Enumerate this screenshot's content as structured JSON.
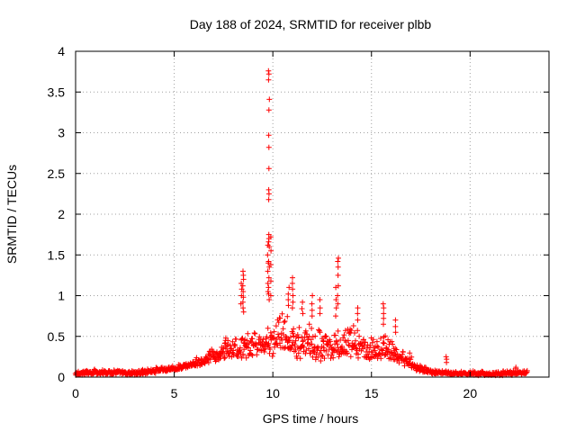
{
  "chart_data": {
    "type": "scatter",
    "title": "Day 188 of 2024, SRMTID for receiver plbb",
    "xlabel": "GPS time / hours",
    "ylabel": "SRMTID / TECUs",
    "xlim": [
      0,
      24
    ],
    "ylim": [
      0,
      4
    ],
    "xticks": [
      0,
      5,
      10,
      15,
      20
    ],
    "xtick_labels": [
      "0",
      "5",
      "10",
      "15",
      "20"
    ],
    "yticks": [
      0,
      0.5,
      1,
      1.5,
      2,
      2.5,
      3,
      3.5,
      4
    ],
    "ytick_labels": [
      "0",
      "0.5",
      "1",
      "1.5",
      "2",
      "2.5",
      "3",
      "3.5",
      "4"
    ],
    "grid": true,
    "marker": "+",
    "marker_color": "#ff0000",
    "x_range": [
      0,
      22.9
    ],
    "envelope": {
      "x": [
        0,
        1,
        2,
        3,
        4,
        5,
        5.5,
        6,
        6.5,
        7,
        7.5,
        8,
        8.5,
        9,
        9.5,
        10,
        10.5,
        11,
        11.5,
        12,
        12.5,
        13,
        13.5,
        14,
        14.5,
        15,
        15.5,
        16,
        16.5,
        17,
        17.5,
        18,
        19,
        20,
        21,
        22,
        22.9
      ],
      "low": [
        0.02,
        0.03,
        0.03,
        0.02,
        0.04,
        0.08,
        0.1,
        0.12,
        0.15,
        0.18,
        0.22,
        0.25,
        0.22,
        0.25,
        0.28,
        0.25,
        0.3,
        0.25,
        0.2,
        0.2,
        0.18,
        0.22,
        0.25,
        0.25,
        0.2,
        0.2,
        0.22,
        0.2,
        0.15,
        0.1,
        0.06,
        0.04,
        0.03,
        0.02,
        0.02,
        0.02,
        0.03
      ],
      "high": [
        0.09,
        0.1,
        0.1,
        0.08,
        0.12,
        0.15,
        0.18,
        0.22,
        0.3,
        0.4,
        0.45,
        0.5,
        0.55,
        0.6,
        0.55,
        0.7,
        0.85,
        0.8,
        0.7,
        0.75,
        0.6,
        0.55,
        0.6,
        0.7,
        0.55,
        0.5,
        0.55,
        0.5,
        0.4,
        0.3,
        0.15,
        0.1,
        0.08,
        0.08,
        0.07,
        0.09,
        0.09
      ]
    },
    "spikes": [
      {
        "x": 9.8,
        "values": [
          3.76,
          3.72,
          3.65,
          3.41,
          3.28,
          2.97,
          2.82,
          2.56,
          2.3,
          2.25,
          2.18,
          1.75,
          1.7,
          1.66,
          1.6,
          1.42,
          1.35,
          1.22,
          1.1,
          1.02,
          0.95
        ]
      },
      {
        "x": 9.75,
        "values": [
          1.62,
          1.5,
          1.4,
          1.3,
          1.15,
          1.05
        ]
      },
      {
        "x": 9.9,
        "values": [
          1.72,
          1.55,
          1.38,
          1.18,
          1.0
        ]
      },
      {
        "x": 8.5,
        "values": [
          1.3,
          1.25,
          1.2,
          1.12,
          1.05,
          0.98,
          0.92,
          0.85,
          0.8
        ]
      },
      {
        "x": 8.4,
        "values": [
          1.15,
          1.08,
          1.0,
          0.9
        ]
      },
      {
        "x": 13.3,
        "values": [
          1.46,
          1.42,
          1.35,
          1.25,
          1.12,
          1.0,
          0.9
        ]
      },
      {
        "x": 13.2,
        "values": [
          1.1,
          0.95,
          0.85,
          0.75
        ]
      },
      {
        "x": 11.0,
        "values": [
          1.22,
          1.15,
          1.08,
          1.0,
          0.92,
          0.85
        ]
      },
      {
        "x": 10.8,
        "values": [
          1.1,
          1.02,
          0.95,
          0.88
        ]
      },
      {
        "x": 15.6,
        "values": [
          0.9,
          0.85,
          0.78,
          0.72,
          0.65
        ]
      },
      {
        "x": 12.0,
        "values": [
          1.0,
          0.9,
          0.82,
          0.75
        ]
      },
      {
        "x": 12.4,
        "values": [
          0.95,
          0.85,
          0.78
        ]
      },
      {
        "x": 14.3,
        "values": [
          0.85,
          0.78,
          0.7
        ]
      },
      {
        "x": 11.5,
        "values": [
          0.92,
          0.84,
          0.78
        ]
      },
      {
        "x": 16.2,
        "values": [
          0.7,
          0.62,
          0.55
        ]
      },
      {
        "x": 7.6,
        "values": [
          0.48,
          0.45,
          0.42
        ]
      },
      {
        "x": 18.8,
        "values": [
          0.25,
          0.22,
          0.18
        ]
      },
      {
        "x": 22.3,
        "values": [
          0.12,
          0.1
        ]
      }
    ]
  }
}
